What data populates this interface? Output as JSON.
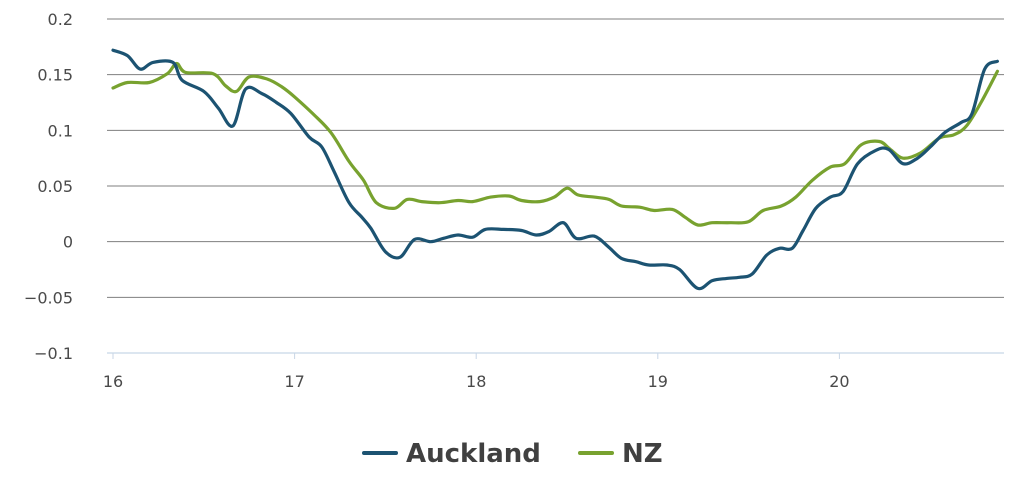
{
  "chart_data": {
    "type": "line",
    "x_ticks": [
      16,
      17,
      18,
      19,
      20
    ],
    "y_ticks": [
      0.2,
      0.15,
      0.1,
      0.05,
      0,
      -0.05,
      -0.1
    ],
    "y_tick_labels": [
      "0.2",
      "0.15",
      "0.1",
      "0.05",
      "0",
      "−0.05",
      "−0.1"
    ],
    "xlim": [
      16,
      20.87
    ],
    "ylim": [
      -0.1,
      0.2
    ],
    "grid": true,
    "legend": "bottom-center",
    "series": [
      {
        "name": "Auckland",
        "color": "#1c5372",
        "points": [
          [
            16.0,
            0.172
          ],
          [
            16.08,
            0.167
          ],
          [
            16.15,
            0.155
          ],
          [
            16.22,
            0.161
          ],
          [
            16.33,
            0.161
          ],
          [
            16.38,
            0.145
          ],
          [
            16.5,
            0.135
          ],
          [
            16.58,
            0.12
          ],
          [
            16.66,
            0.104
          ],
          [
            16.73,
            0.137
          ],
          [
            16.82,
            0.133
          ],
          [
            16.9,
            0.125
          ],
          [
            16.98,
            0.115
          ],
          [
            17.08,
            0.094
          ],
          [
            17.15,
            0.085
          ],
          [
            17.22,
            0.062
          ],
          [
            17.3,
            0.035
          ],
          [
            17.37,
            0.022
          ],
          [
            17.42,
            0.012
          ],
          [
            17.5,
            -0.009
          ],
          [
            17.58,
            -0.014
          ],
          [
            17.66,
            0.002
          ],
          [
            17.75,
            0.0
          ],
          [
            17.82,
            0.003
          ],
          [
            17.9,
            0.006
          ],
          [
            17.98,
            0.004
          ],
          [
            18.05,
            0.011
          ],
          [
            18.15,
            0.011
          ],
          [
            18.25,
            0.01
          ],
          [
            18.33,
            0.006
          ],
          [
            18.4,
            0.009
          ],
          [
            18.48,
            0.017
          ],
          [
            18.55,
            0.003
          ],
          [
            18.65,
            0.005
          ],
          [
            18.73,
            -0.005
          ],
          [
            18.8,
            -0.015
          ],
          [
            18.88,
            -0.018
          ],
          [
            18.95,
            -0.021
          ],
          [
            19.05,
            -0.021
          ],
          [
            19.12,
            -0.025
          ],
          [
            19.22,
            -0.042
          ],
          [
            19.3,
            -0.035
          ],
          [
            19.38,
            -0.033
          ],
          [
            19.45,
            -0.032
          ],
          [
            19.52,
            -0.029
          ],
          [
            19.6,
            -0.012
          ],
          [
            19.67,
            -0.006
          ],
          [
            19.74,
            -0.006
          ],
          [
            19.8,
            0.01
          ],
          [
            19.87,
            0.03
          ],
          [
            19.95,
            0.04
          ],
          [
            20.02,
            0.045
          ],
          [
            20.1,
            0.07
          ],
          [
            20.2,
            0.082
          ],
          [
            20.27,
            0.083
          ],
          [
            20.35,
            0.07
          ],
          [
            20.43,
            0.075
          ],
          [
            20.5,
            0.085
          ],
          [
            20.58,
            0.098
          ],
          [
            20.67,
            0.107
          ],
          [
            20.73,
            0.115
          ],
          [
            20.8,
            0.155
          ],
          [
            20.87,
            0.162
          ]
        ]
      },
      {
        "name": "NZ",
        "color": "#78a22f",
        "points": [
          [
            16.0,
            0.138
          ],
          [
            16.08,
            0.143
          ],
          [
            16.2,
            0.143
          ],
          [
            16.3,
            0.151
          ],
          [
            16.35,
            0.16
          ],
          [
            16.4,
            0.152
          ],
          [
            16.55,
            0.151
          ],
          [
            16.62,
            0.14
          ],
          [
            16.68,
            0.135
          ],
          [
            16.75,
            0.148
          ],
          [
            16.85,
            0.146
          ],
          [
            16.93,
            0.139
          ],
          [
            17.0,
            0.13
          ],
          [
            17.1,
            0.115
          ],
          [
            17.2,
            0.098
          ],
          [
            17.3,
            0.072
          ],
          [
            17.38,
            0.055
          ],
          [
            17.45,
            0.035
          ],
          [
            17.55,
            0.03
          ],
          [
            17.62,
            0.038
          ],
          [
            17.7,
            0.036
          ],
          [
            17.8,
            0.035
          ],
          [
            17.9,
            0.037
          ],
          [
            17.98,
            0.036
          ],
          [
            18.08,
            0.04
          ],
          [
            18.18,
            0.041
          ],
          [
            18.25,
            0.037
          ],
          [
            18.35,
            0.036
          ],
          [
            18.43,
            0.04
          ],
          [
            18.5,
            0.048
          ],
          [
            18.56,
            0.042
          ],
          [
            18.65,
            0.04
          ],
          [
            18.73,
            0.038
          ],
          [
            18.8,
            0.032
          ],
          [
            18.9,
            0.031
          ],
          [
            18.98,
            0.028
          ],
          [
            19.08,
            0.029
          ],
          [
            19.15,
            0.022
          ],
          [
            19.22,
            0.015
          ],
          [
            19.3,
            0.017
          ],
          [
            19.4,
            0.017
          ],
          [
            19.5,
            0.018
          ],
          [
            19.58,
            0.028
          ],
          [
            19.68,
            0.032
          ],
          [
            19.76,
            0.04
          ],
          [
            19.85,
            0.055
          ],
          [
            19.95,
            0.067
          ],
          [
            20.03,
            0.07
          ],
          [
            20.12,
            0.087
          ],
          [
            20.22,
            0.09
          ],
          [
            20.28,
            0.083
          ],
          [
            20.35,
            0.075
          ],
          [
            20.45,
            0.08
          ],
          [
            20.55,
            0.093
          ],
          [
            20.63,
            0.096
          ],
          [
            20.7,
            0.104
          ],
          [
            20.78,
            0.125
          ],
          [
            20.87,
            0.153
          ]
        ]
      }
    ]
  }
}
